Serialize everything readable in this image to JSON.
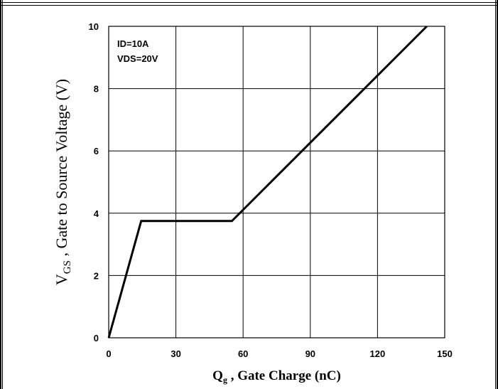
{
  "chart_data": {
    "type": "line",
    "xlabel_main": "Q",
    "xlabel_sub": "g",
    "xlabel_rest": " , Gate Charge (nC)",
    "ylabel_main": "V",
    "ylabel_sub": "GS",
    "ylabel_rest": " , Gate to Source Voltage (V)",
    "xlim": [
      0,
      150
    ],
    "ylim": [
      0,
      10
    ],
    "xticks": [
      0,
      30,
      60,
      90,
      120,
      150
    ],
    "yticks": [
      0,
      2,
      4,
      6,
      8,
      10
    ],
    "grid": true,
    "annotations": [
      "ID=10A",
      "VDS=20V"
    ],
    "series": [
      {
        "x": [
          0,
          14.5,
          55,
          142
        ],
        "y": [
          0,
          3.75,
          3.75,
          10
        ]
      }
    ]
  }
}
